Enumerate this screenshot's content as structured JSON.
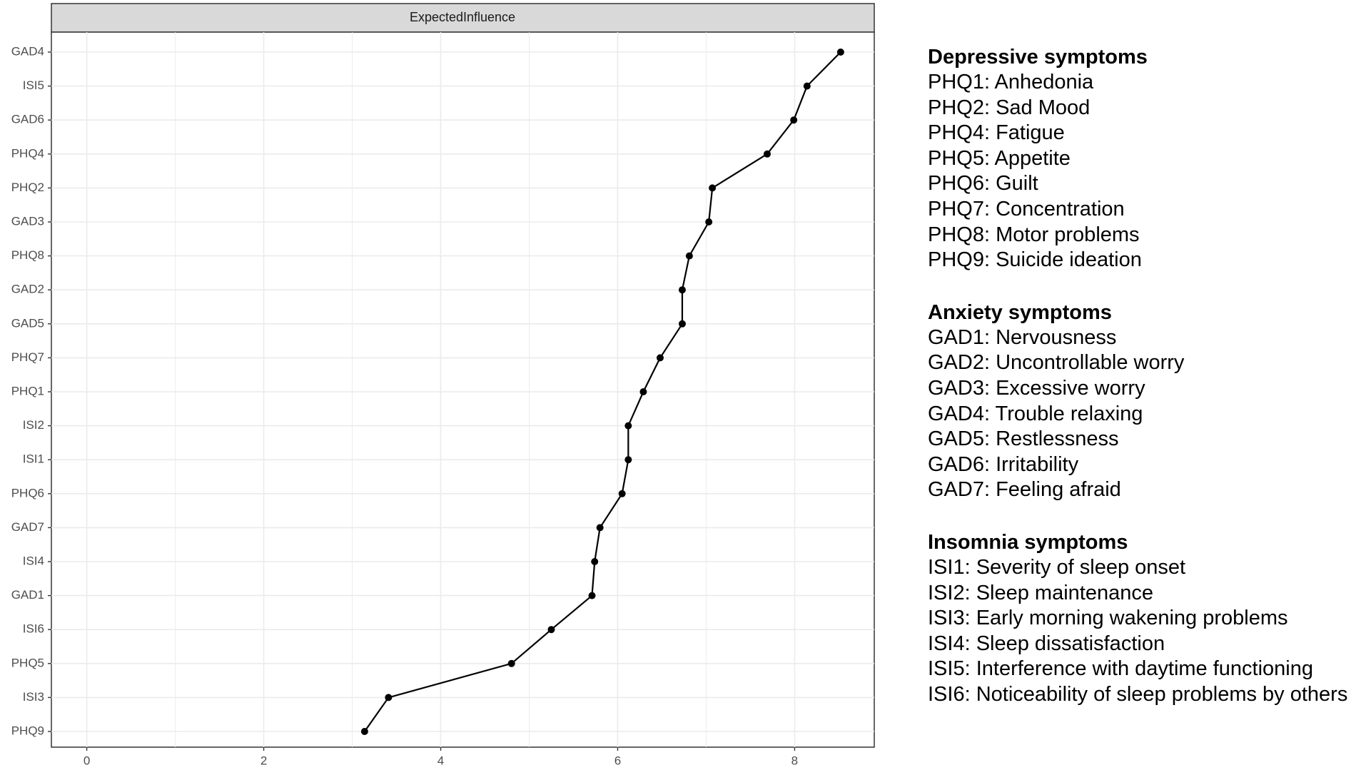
{
  "chart_data": {
    "type": "line",
    "facet_label": "ExpectedInfluence",
    "categories": [
      "GAD4",
      "ISI5",
      "GAD6",
      "PHQ4",
      "PHQ2",
      "GAD3",
      "PHQ8",
      "GAD2",
      "GAD5",
      "PHQ7",
      "PHQ1",
      "ISI2",
      "ISI1",
      "PHQ6",
      "GAD7",
      "ISI4",
      "GAD1",
      "ISI6",
      "PHQ5",
      "ISI3",
      "PHQ9"
    ],
    "values": [
      8.52,
      8.14,
      7.99,
      7.69,
      7.07,
      7.03,
      6.81,
      6.73,
      6.73,
      6.48,
      6.29,
      6.12,
      6.12,
      6.05,
      5.8,
      5.74,
      5.71,
      5.25,
      4.8,
      3.41,
      3.14
    ],
    "x_ticks": [
      0,
      2,
      4,
      6,
      8
    ],
    "xlim": [
      -0.4,
      8.9
    ],
    "grid": true,
    "xlabel": "",
    "ylabel": ""
  },
  "legend": {
    "groups": [
      {
        "heading": "Depressive symptoms",
        "items": [
          "PHQ1: Anhedonia",
          "PHQ2: Sad Mood",
          "PHQ4: Fatigue",
          "PHQ5: Appetite",
          "PHQ6: Guilt",
          "PHQ7: Concentration",
          "PHQ8: Motor problems",
          "PHQ9: Suicide ideation"
        ]
      },
      {
        "heading": "Anxiety symptoms",
        "items": [
          "GAD1: Nervousness",
          "GAD2: Uncontrollable worry",
          "GAD3: Excessive worry",
          "GAD4: Trouble relaxing",
          "GAD5: Restlessness",
          "GAD6: Irritability",
          "GAD7: Feeling afraid"
        ]
      },
      {
        "heading": "Insomnia symptoms",
        "items": [
          "ISI1: Severity of sleep onset",
          "ISI2: Sleep maintenance",
          "ISI3: Early morning wakening problems",
          "ISI4: Sleep dissatisfaction",
          "ISI5: Interference with daytime functioning",
          "ISI6: Noticeability of sleep problems by others"
        ]
      }
    ]
  },
  "colors": {
    "line": "#000000",
    "point": "#000000",
    "strip_fill": "#d9d9d9",
    "grid": "#ebebeb",
    "axis_text": "#4d4d4d"
  }
}
